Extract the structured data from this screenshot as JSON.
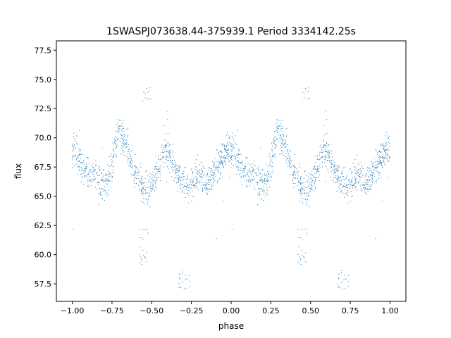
{
  "chart_data": {
    "type": "scatter",
    "title": "1SWASPJ073638.44-375939.1 Period 3334142.25s",
    "xlabel": "phase",
    "ylabel": "flux",
    "xlim": [
      -1.1,
      1.1
    ],
    "ylim": [
      56.0,
      78.3
    ],
    "xticks": [
      -1.0,
      -0.75,
      -0.5,
      -0.25,
      0.0,
      0.25,
      0.5,
      0.75,
      1.0
    ],
    "xtick_labels": [
      "−1.00",
      "−0.75",
      "−0.50",
      "−0.25",
      "0.00",
      "0.25",
      "0.50",
      "0.75",
      "1.00"
    ],
    "yticks": [
      57.5,
      60.0,
      62.5,
      65.0,
      67.5,
      70.0,
      72.5,
      75.0,
      77.5
    ],
    "ytick_labels": [
      "57.5",
      "60.0",
      "62.5",
      "65.0",
      "67.5",
      "70.0",
      "72.5",
      "75.0",
      "77.5"
    ],
    "grid": false,
    "point_color": "#1f77b4",
    "series": [
      {
        "folded_profile": {
          "phase": [
            0.0,
            0.02,
            0.05,
            0.08,
            0.1,
            0.13,
            0.15,
            0.18,
            0.2,
            0.23,
            0.25,
            0.27,
            0.3,
            0.32,
            0.35,
            0.38,
            0.4,
            0.43,
            0.45,
            0.48,
            0.5,
            0.53,
            0.55,
            0.57,
            0.6,
            0.63,
            0.65,
            0.68,
            0.7,
            0.73,
            0.75,
            0.78,
            0.8,
            0.83,
            0.85,
            0.88,
            0.9,
            0.93,
            0.95,
            0.98,
            1.0
          ],
          "flux": [
            69.0,
            68.6,
            68.0,
            67.2,
            66.8,
            67.0,
            66.5,
            66.0,
            65.8,
            66.5,
            67.5,
            69.5,
            70.5,
            70.0,
            69.0,
            67.5,
            66.8,
            66.0,
            65.6,
            65.5,
            66.0,
            66.8,
            67.5,
            68.5,
            69.0,
            68.0,
            67.0,
            66.5,
            66.2,
            66.0,
            66.3,
            66.8,
            67.0,
            66.5,
            66.2,
            66.8,
            67.5,
            68.0,
            68.5,
            68.9,
            69.0
          ],
          "scatter": 1.0
        },
        "dip_groups": [
          {
            "phase": [
              0.42,
              0.49
            ],
            "flux": [
              59.0,
              62.3
            ]
          },
          {
            "phase": [
              0.67,
              0.74
            ],
            "flux": [
              57.0,
              58.7
            ]
          }
        ],
        "upper_clusters": [
          {
            "phase": [
              0.44,
              0.5
            ],
            "flux": [
              73.0,
              74.3
            ]
          }
        ],
        "repeat_over_phase": [
          -1.0,
          1.0
        ]
      }
    ]
  }
}
